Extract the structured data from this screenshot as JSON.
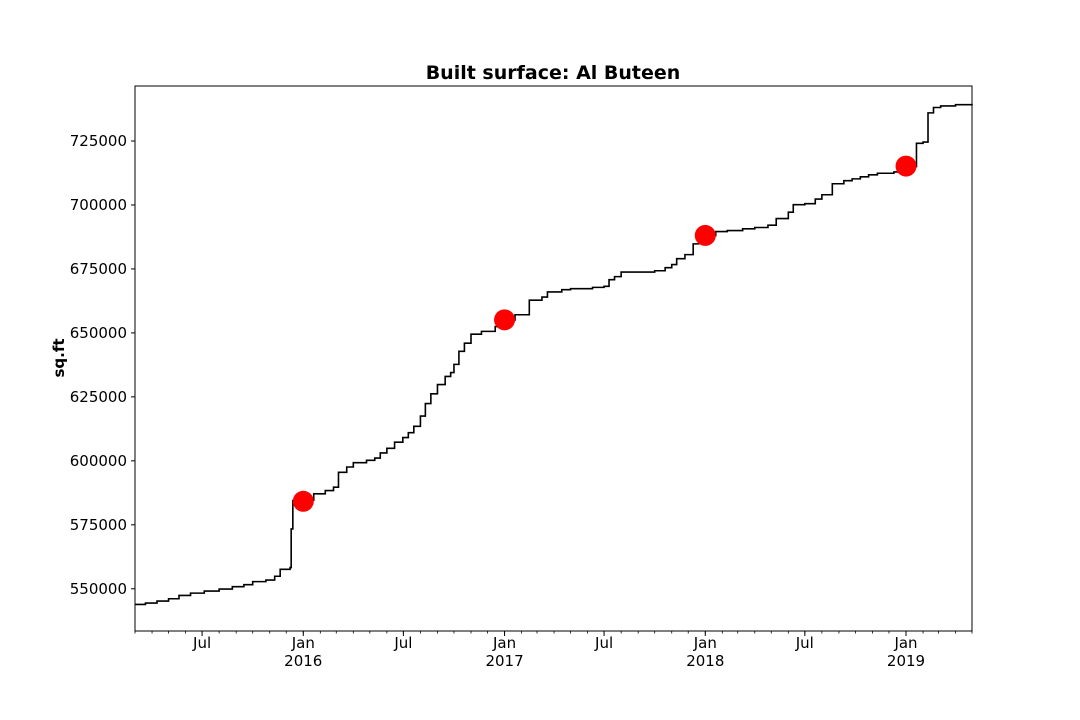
{
  "chart_data": {
    "type": "line",
    "title": "Built surface: Al Buteen",
    "xlabel": "",
    "ylabel": "sq.ft",
    "xlim": [
      "2015-03-01",
      "2019-05-01"
    ],
    "ylim": [
      533500,
      746500
    ],
    "y_ticks": [
      550000,
      575000,
      600000,
      625000,
      650000,
      675000,
      700000,
      725000
    ],
    "x_ticks": [
      {
        "date": "2015-07-01",
        "label": "Jul",
        "year": ""
      },
      {
        "date": "2016-01-01",
        "label": "Jan",
        "year": "2016"
      },
      {
        "date": "2016-07-01",
        "label": "Jul",
        "year": ""
      },
      {
        "date": "2017-01-01",
        "label": "Jan",
        "year": "2017"
      },
      {
        "date": "2017-07-01",
        "label": "Jul",
        "year": ""
      },
      {
        "date": "2018-01-01",
        "label": "Jan",
        "year": "2018"
      },
      {
        "date": "2018-07-01",
        "label": "Jul",
        "year": ""
      },
      {
        "date": "2019-01-01",
        "label": "Jan",
        "year": "2019"
      }
    ],
    "grid": false,
    "colors": {
      "line": "#000000",
      "markers": "#ff0000"
    },
    "series": [
      {
        "style": "step-line",
        "points": [
          [
            "2015-03-01",
            543900
          ],
          [
            "2015-03-20",
            544400
          ],
          [
            "2015-04-10",
            545200
          ],
          [
            "2015-05-01",
            546100
          ],
          [
            "2015-05-20",
            547400
          ],
          [
            "2015-06-10",
            548300
          ],
          [
            "2015-07-05",
            549100
          ],
          [
            "2015-08-01",
            549900
          ],
          [
            "2015-08-25",
            550800
          ],
          [
            "2015-09-15",
            551600
          ],
          [
            "2015-10-01",
            552800
          ],
          [
            "2015-10-25",
            553400
          ],
          [
            "2015-11-10",
            554900
          ],
          [
            "2015-11-20",
            557600
          ],
          [
            "2015-12-08",
            558300
          ],
          [
            "2015-12-10",
            573400
          ],
          [
            "2015-12-13",
            584500
          ],
          [
            "2016-01-01",
            584600
          ],
          [
            "2016-01-20",
            587100
          ],
          [
            "2016-02-10",
            588400
          ],
          [
            "2016-02-25",
            589700
          ],
          [
            "2016-03-05",
            595500
          ],
          [
            "2016-03-20",
            597600
          ],
          [
            "2016-04-01",
            599300
          ],
          [
            "2016-04-25",
            600200
          ],
          [
            "2016-05-10",
            601100
          ],
          [
            "2016-05-20",
            603100
          ],
          [
            "2016-06-01",
            604900
          ],
          [
            "2016-06-15",
            607300
          ],
          [
            "2016-06-30",
            609100
          ],
          [
            "2016-07-10",
            611000
          ],
          [
            "2016-07-20",
            613500
          ],
          [
            "2016-08-01",
            617500
          ],
          [
            "2016-08-10",
            622400
          ],
          [
            "2016-08-20",
            626200
          ],
          [
            "2016-09-01",
            629800
          ],
          [
            "2016-09-15",
            633000
          ],
          [
            "2016-09-25",
            634500
          ],
          [
            "2016-10-01",
            637700
          ],
          [
            "2016-10-10",
            642800
          ],
          [
            "2016-10-20",
            646000
          ],
          [
            "2016-11-01",
            649500
          ],
          [
            "2016-11-20",
            650600
          ],
          [
            "2016-12-15",
            652500
          ],
          [
            "2017-01-01",
            655000
          ],
          [
            "2017-01-20",
            657100
          ],
          [
            "2017-02-15",
            662800
          ],
          [
            "2017-03-10",
            664000
          ],
          [
            "2017-03-20",
            666000
          ],
          [
            "2017-04-15",
            666900
          ],
          [
            "2017-05-01",
            667300
          ],
          [
            "2017-06-10",
            667800
          ],
          [
            "2017-07-01",
            668200
          ],
          [
            "2017-07-10",
            670800
          ],
          [
            "2017-07-20",
            672000
          ],
          [
            "2017-08-01",
            673800
          ],
          [
            "2017-10-01",
            674300
          ],
          [
            "2017-10-20",
            675500
          ],
          [
            "2017-11-01",
            676700
          ],
          [
            "2017-11-10",
            679000
          ],
          [
            "2017-11-25",
            680600
          ],
          [
            "2017-12-10",
            684800
          ],
          [
            "2017-12-20",
            687600
          ],
          [
            "2018-01-01",
            688000
          ],
          [
            "2018-01-20",
            689600
          ],
          [
            "2018-02-10",
            690000
          ],
          [
            "2018-03-10",
            690700
          ],
          [
            "2018-04-01",
            691200
          ],
          [
            "2018-04-25",
            692100
          ],
          [
            "2018-05-10",
            694700
          ],
          [
            "2018-06-01",
            697200
          ],
          [
            "2018-06-10",
            700100
          ],
          [
            "2018-07-01",
            700500
          ],
          [
            "2018-07-20",
            702300
          ],
          [
            "2018-08-01",
            704000
          ],
          [
            "2018-08-20",
            708300
          ],
          [
            "2018-09-10",
            709500
          ],
          [
            "2018-09-25",
            710200
          ],
          [
            "2018-10-10",
            711000
          ],
          [
            "2018-10-25",
            711800
          ],
          [
            "2018-11-10",
            712400
          ],
          [
            "2018-12-10",
            712900
          ],
          [
            "2019-01-01",
            715000
          ],
          [
            "2019-01-20",
            724100
          ],
          [
            "2019-02-01",
            724600
          ],
          [
            "2019-02-10",
            736000
          ],
          [
            "2019-02-20",
            738100
          ],
          [
            "2019-03-05",
            738700
          ],
          [
            "2019-04-01",
            739200
          ],
          [
            "2019-05-01",
            739500
          ]
        ]
      },
      {
        "style": "markers",
        "points": [
          [
            "2016-01-01",
            584200
          ],
          [
            "2017-01-01",
            655100
          ],
          [
            "2018-01-01",
            688100
          ],
          [
            "2019-01-01",
            715200
          ]
        ]
      }
    ]
  }
}
